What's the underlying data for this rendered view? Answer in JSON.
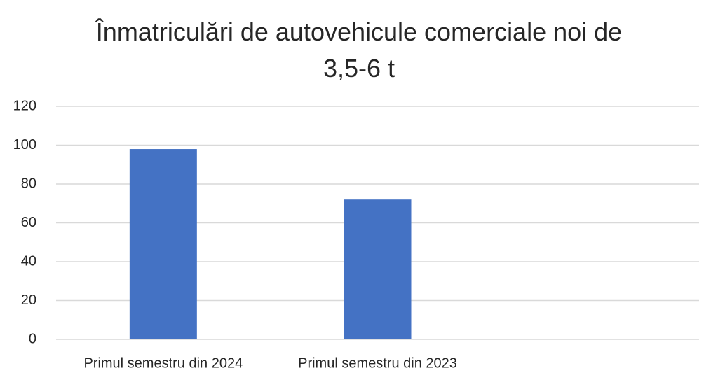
{
  "chart_data": {
    "type": "bar",
    "title": "Înmatriculări de autovehicule comerciale noi de 3,5-6 t",
    "categories": [
      "Primul semestru din 2024",
      "Primul semestru din 2023",
      null
    ],
    "values": [
      98,
      72,
      null
    ],
    "color": "#4472c4",
    "ylim": [
      0,
      120
    ],
    "yticks": [
      0,
      20,
      40,
      60,
      80,
      100,
      120
    ],
    "grid": true
  }
}
